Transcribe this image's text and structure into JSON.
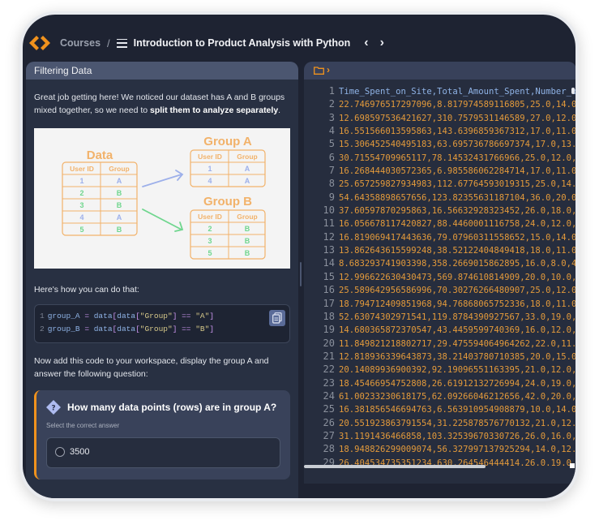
{
  "header": {
    "breadcrumb": "Courses",
    "separator": "/",
    "course_title": "Introduction to Product Analysis with Python",
    "prev": "‹",
    "next": "›"
  },
  "lesson": {
    "tab_title": "Filtering Data",
    "intro_text": "Great job getting here! We noticed our dataset has A and B groups mixed together, so we need to ",
    "intro_bold": "split them to analyze separately",
    "intro_end": ".",
    "diagram": {
      "data_title": "Data",
      "group_a_title": "Group A",
      "group_b_title": "Group B",
      "col_user": "User ID",
      "col_group": "Group",
      "data_rows": [
        [
          "1",
          "A"
        ],
        [
          "2",
          "B"
        ],
        [
          "3",
          "B"
        ],
        [
          "4",
          "A"
        ],
        [
          "5",
          "B"
        ]
      ],
      "group_a_rows": [
        [
          "1",
          "A"
        ],
        [
          "4",
          "A"
        ]
      ],
      "group_b_rows": [
        [
          "2",
          "B"
        ],
        [
          "3",
          "B"
        ],
        [
          "5",
          "B"
        ]
      ],
      "color_a": "#9db0ea",
      "color_b": "#6fd68e",
      "accent": "#f2b26a"
    },
    "howto_text": "Here's how you can do that:",
    "code": [
      {
        "num": "1",
        "var": "group_A",
        "eq": " = ",
        "obj": "data",
        "lb": "[",
        "obj2": "data",
        "lb2": "[",
        "key": "\"Group\"",
        "rb2": "]",
        "cmp": " == ",
        "val": "\"A\"",
        "rb": "]"
      },
      {
        "num": "2",
        "var": "group_B",
        "eq": " = ",
        "obj": "data",
        "lb": "[",
        "obj2": "data",
        "lb2": "[",
        "key": "\"Group\"",
        "rb2": "]",
        "cmp": " == ",
        "val": "\"B\"",
        "rb": "]"
      }
    ],
    "now_text": "Now add this code to your workspace, display the group A and answer the following question:",
    "question": {
      "text": "How many data points (rows) are in group A?",
      "hint": "Select the correct answer",
      "options": [
        "3500"
      ]
    }
  },
  "editor": {
    "lines": [
      "Time_Spent_on_Site,Total_Amount_Spent,Number_of_C",
      "22.746976517297096,8.817974589116805,25.0,14.0,7.",
      "12.698597536421627,310.7579531146589,27.0,12.0,35",
      "16.551566013595863,143.6396859367312,17.0,11.0,18",
      "15.306452540495183,63.695736786697374,17.0,13.0,1",
      "30.71554709965117,78.14532431766966,25.0,12.0,15.",
      "16.268444030572365,6.985586062284714,17.0,11.0,5.",
      "25.657259827934983,112.67764593019315,25.0,14.0,2",
      "54.64358898657656,123.82355631187104,36.0,20.0,24",
      "37.60597870295863,16.56632928323452,26.0,18.0,11.",
      "16.056678117420827,88.4460001116758,24.0,12.0,17.",
      "16.819069417443636,79.07960311558652,15.0,14.0,9.",
      "13.862643615599248,38.52122404849418,18.0,11.0,9.",
      "8.683293741903398,358.2669015862895,16.0,8.0,41.4",
      "12.996622630430473,569.874610814909,20.0,10.0,76.",
      "25.589642956586996,70.30276266480907,25.0,12.0,16",
      "18.794712409851968,94.76868065752336,18.0,11.0,18",
      "52.63074302971541,119.8784390927567,33.0,19.0,20.",
      "14.680365872370547,43.4459599740369,16.0,12.0,7.5",
      "11.849821218802717,29.475594064964262,22.0,11.0,7",
      "12.818936339643873,38.21403780710385,20.0,15.0,7.",
      "20.14089936900392,92.19096551163395,21.0,12.0,6.4",
      "18.45466954752808,26.61912132726994,24.0,19.0,8.2",
      "61.00233230618175,62.09266046212656,42.0,20.0,15.",
      "16.381856546694763,6.563910954908879,10.0,14.0,4.",
      "20.551923863791554,31.225878576770132,21.0,12.0,9",
      "31.1191436466858,103.32539670330726,26.0,16.0,18.",
      "18.948826299009074,56.327997137925294,14.0,12.0,1",
      "26.404534735351234,630.264546444414,26.0,19.0,7.7"
    ]
  },
  "colors": {
    "accent": "#f0921d",
    "background": "#1e2332",
    "panel": "#283042"
  }
}
